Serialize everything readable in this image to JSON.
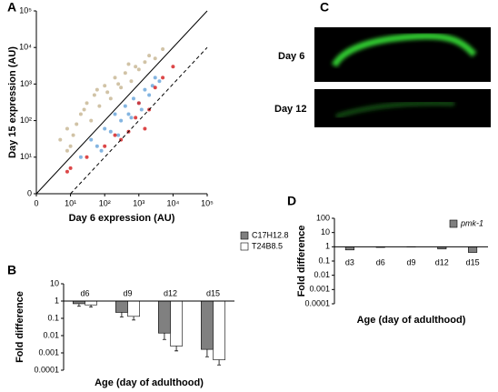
{
  "panel_labels": [
    "A",
    "B",
    "C",
    "D"
  ],
  "images": {
    "labels": [
      "Day 6",
      "Day 12"
    ]
  },
  "chart_data": [
    {
      "type": "scatter",
      "xlabel": "Day 6 expression (AU)",
      "ylabel": "Day 15 expression (AU)",
      "log": true,
      "xlim": [
        1,
        100000
      ],
      "ylim": [
        1,
        100000
      ],
      "xticks": [
        {
          "value": 1,
          "label": "0"
        },
        {
          "value": 10,
          "label": "10¹"
        },
        {
          "value": 100,
          "label": "10²"
        },
        {
          "value": 1000,
          "label": "10³"
        },
        {
          "value": 10000,
          "label": "10⁴"
        },
        {
          "value": 100000,
          "label": "10⁵"
        }
      ],
      "yticks": [
        {
          "value": 1,
          "label": "0"
        },
        {
          "value": 10,
          "label": "10¹"
        },
        {
          "value": 100,
          "label": "10²"
        },
        {
          "value": 1000,
          "label": "10³"
        },
        {
          "value": 10000,
          "label": "10⁴"
        },
        {
          "value": 100000,
          "label": "10⁵"
        }
      ],
      "series": [
        {
          "color": "#c9b996",
          "x": [
            5,
            8,
            10,
            15,
            20,
            30,
            40,
            50,
            70,
            100,
            150,
            200,
            300,
            400,
            600,
            800,
            1000,
            1500,
            2000,
            3000,
            5000,
            8,
            12,
            25,
            60,
            120,
            250,
            500
          ],
          "values": [
            30,
            60,
            20,
            80,
            150,
            300,
            100,
            500,
            250,
            900,
            400,
            1500,
            800,
            2000,
            1200,
            3000,
            2500,
            4000,
            6000,
            5000,
            9000,
            15,
            40,
            200,
            700,
            600,
            1000,
            3500
          ]
        },
        {
          "color": "#6fa8dc",
          "x": [
            20,
            40,
            60,
            100,
            150,
            200,
            300,
            400,
            500,
            700,
            1000,
            1500,
            2000,
            3000,
            4000,
            80,
            250,
            600,
            1200,
            2500
          ],
          "values": [
            10,
            30,
            20,
            60,
            50,
            150,
            100,
            250,
            150,
            400,
            300,
            700,
            500,
            1500,
            1200,
            15,
            40,
            120,
            200,
            900
          ]
        },
        {
          "color": "#d62728",
          "x": [
            8,
            10,
            30,
            100,
            200,
            500,
            800,
            1000,
            2000,
            3000,
            5000,
            10000,
            1500,
            300
          ],
          "values": [
            4,
            5,
            10,
            20,
            40,
            50,
            120,
            300,
            200,
            800,
            1500,
            3000,
            60,
            30
          ]
        }
      ]
    },
    {
      "type": "bar",
      "xlabel": "Age (day of adulthood)",
      "ylabel": "Fold difference",
      "log": true,
      "categories": [
        "d6",
        "d9",
        "d12",
        "d15"
      ],
      "ylim": [
        0.0001,
        10
      ],
      "yticks": [
        10,
        1,
        0.1,
        0.01,
        0.001,
        0.0001
      ],
      "series": [
        {
          "name": "C17H12.8",
          "color": "#808080",
          "values": [
            0.7,
            0.22,
            0.014,
            0.0016
          ],
          "errors": [
            0.2,
            0.1,
            0.008,
            0.001
          ]
        },
        {
          "name": "T24B8.5",
          "color": "#ffffff",
          "values": [
            0.6,
            0.13,
            0.0025,
            0.0004
          ],
          "errors": [
            0.15,
            0.05,
            0.0012,
            0.0002
          ]
        }
      ]
    },
    {
      "type": "bar",
      "xlabel": "Age (day of adulthood)",
      "ylabel": "Fold difference",
      "log": true,
      "categories": [
        "d3",
        "d6",
        "d9",
        "d12",
        "d15"
      ],
      "ylim": [
        0.0001,
        100
      ],
      "yticks": [
        100,
        10,
        1,
        0.1,
        0.01,
        0.001,
        0.0001
      ],
      "series": [
        {
          "name": "pmk-1",
          "color": "#808080",
          "values": [
            0.6,
            0.9,
            0.95,
            0.7,
            0.4
          ]
        }
      ]
    }
  ]
}
